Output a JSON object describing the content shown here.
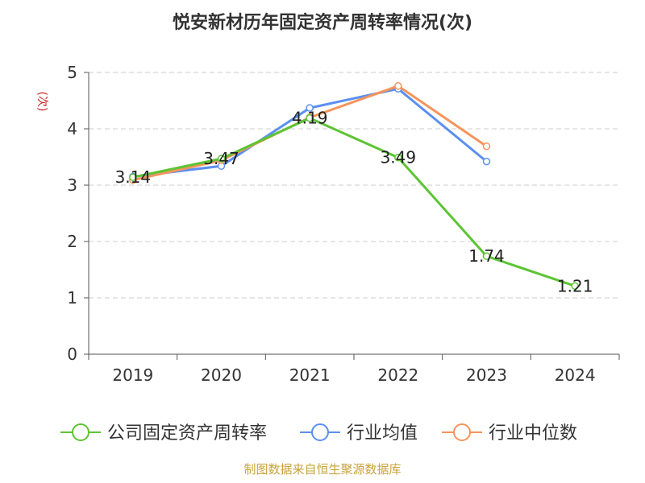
{
  "chart_data": {
    "type": "line",
    "title": "悦安新材历年固定资产周转率情况(次)",
    "ylabel": "(次)",
    "xlabel": "",
    "categories": [
      "2019",
      "2020",
      "2021",
      "2022",
      "2023",
      "2024"
    ],
    "ylim": [
      0,
      5
    ],
    "yticks": [
      0,
      1,
      2,
      3,
      4,
      5
    ],
    "grid": true,
    "legend_position": "bottom",
    "series": [
      {
        "name": "公司固定资产周转率",
        "color": "#5dc434",
        "values": [
          3.14,
          3.47,
          4.19,
          3.49,
          1.74,
          1.21
        ],
        "labels": [
          "3.14",
          "3.47",
          "4.19",
          "3.49",
          "1.74",
          "1.21"
        ]
      },
      {
        "name": "行业均值",
        "color": "#5b8ff0",
        "values": [
          3.15,
          3.34,
          4.37,
          4.71,
          3.42,
          null
        ]
      },
      {
        "name": "行业中位数",
        "color": "#f5945c",
        "values": [
          3.09,
          3.44,
          4.2,
          4.76,
          3.69,
          null
        ]
      }
    ]
  },
  "source": "制图数据来自恒生聚源数据库",
  "colors": {
    "source": "#c9a33a",
    "ylabel": "#cc2222",
    "grid": "#cccccc",
    "axis": "#555555"
  }
}
